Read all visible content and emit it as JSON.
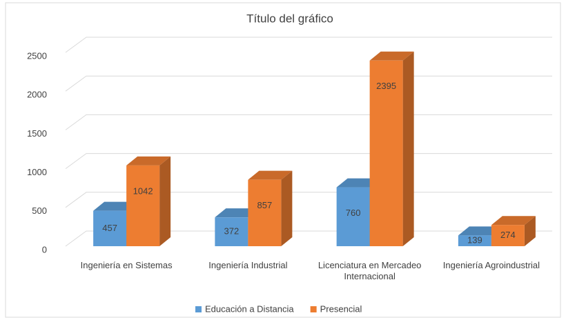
{
  "chart_data": {
    "type": "bar3d",
    "title": "Título del gráfico",
    "categories": [
      "Ingeniería en Sistemas",
      "Ingeniería Industrial",
      "Licenciatura en Mercadeo Internacional",
      "Ingeniería Agroindustrial"
    ],
    "series": [
      {
        "name": "Educación a Distancia",
        "color": "#5b9bd5",
        "values": [
          457,
          372,
          760,
          139
        ]
      },
      {
        "name": "Presencial",
        "color": "#ed7d31",
        "values": [
          1042,
          857,
          2395,
          274
        ]
      }
    ],
    "ylim": [
      0,
      2500
    ],
    "yticks": [
      0,
      500,
      1000,
      1500,
      2000,
      2500
    ],
    "grid": true,
    "legend": "bottom"
  }
}
